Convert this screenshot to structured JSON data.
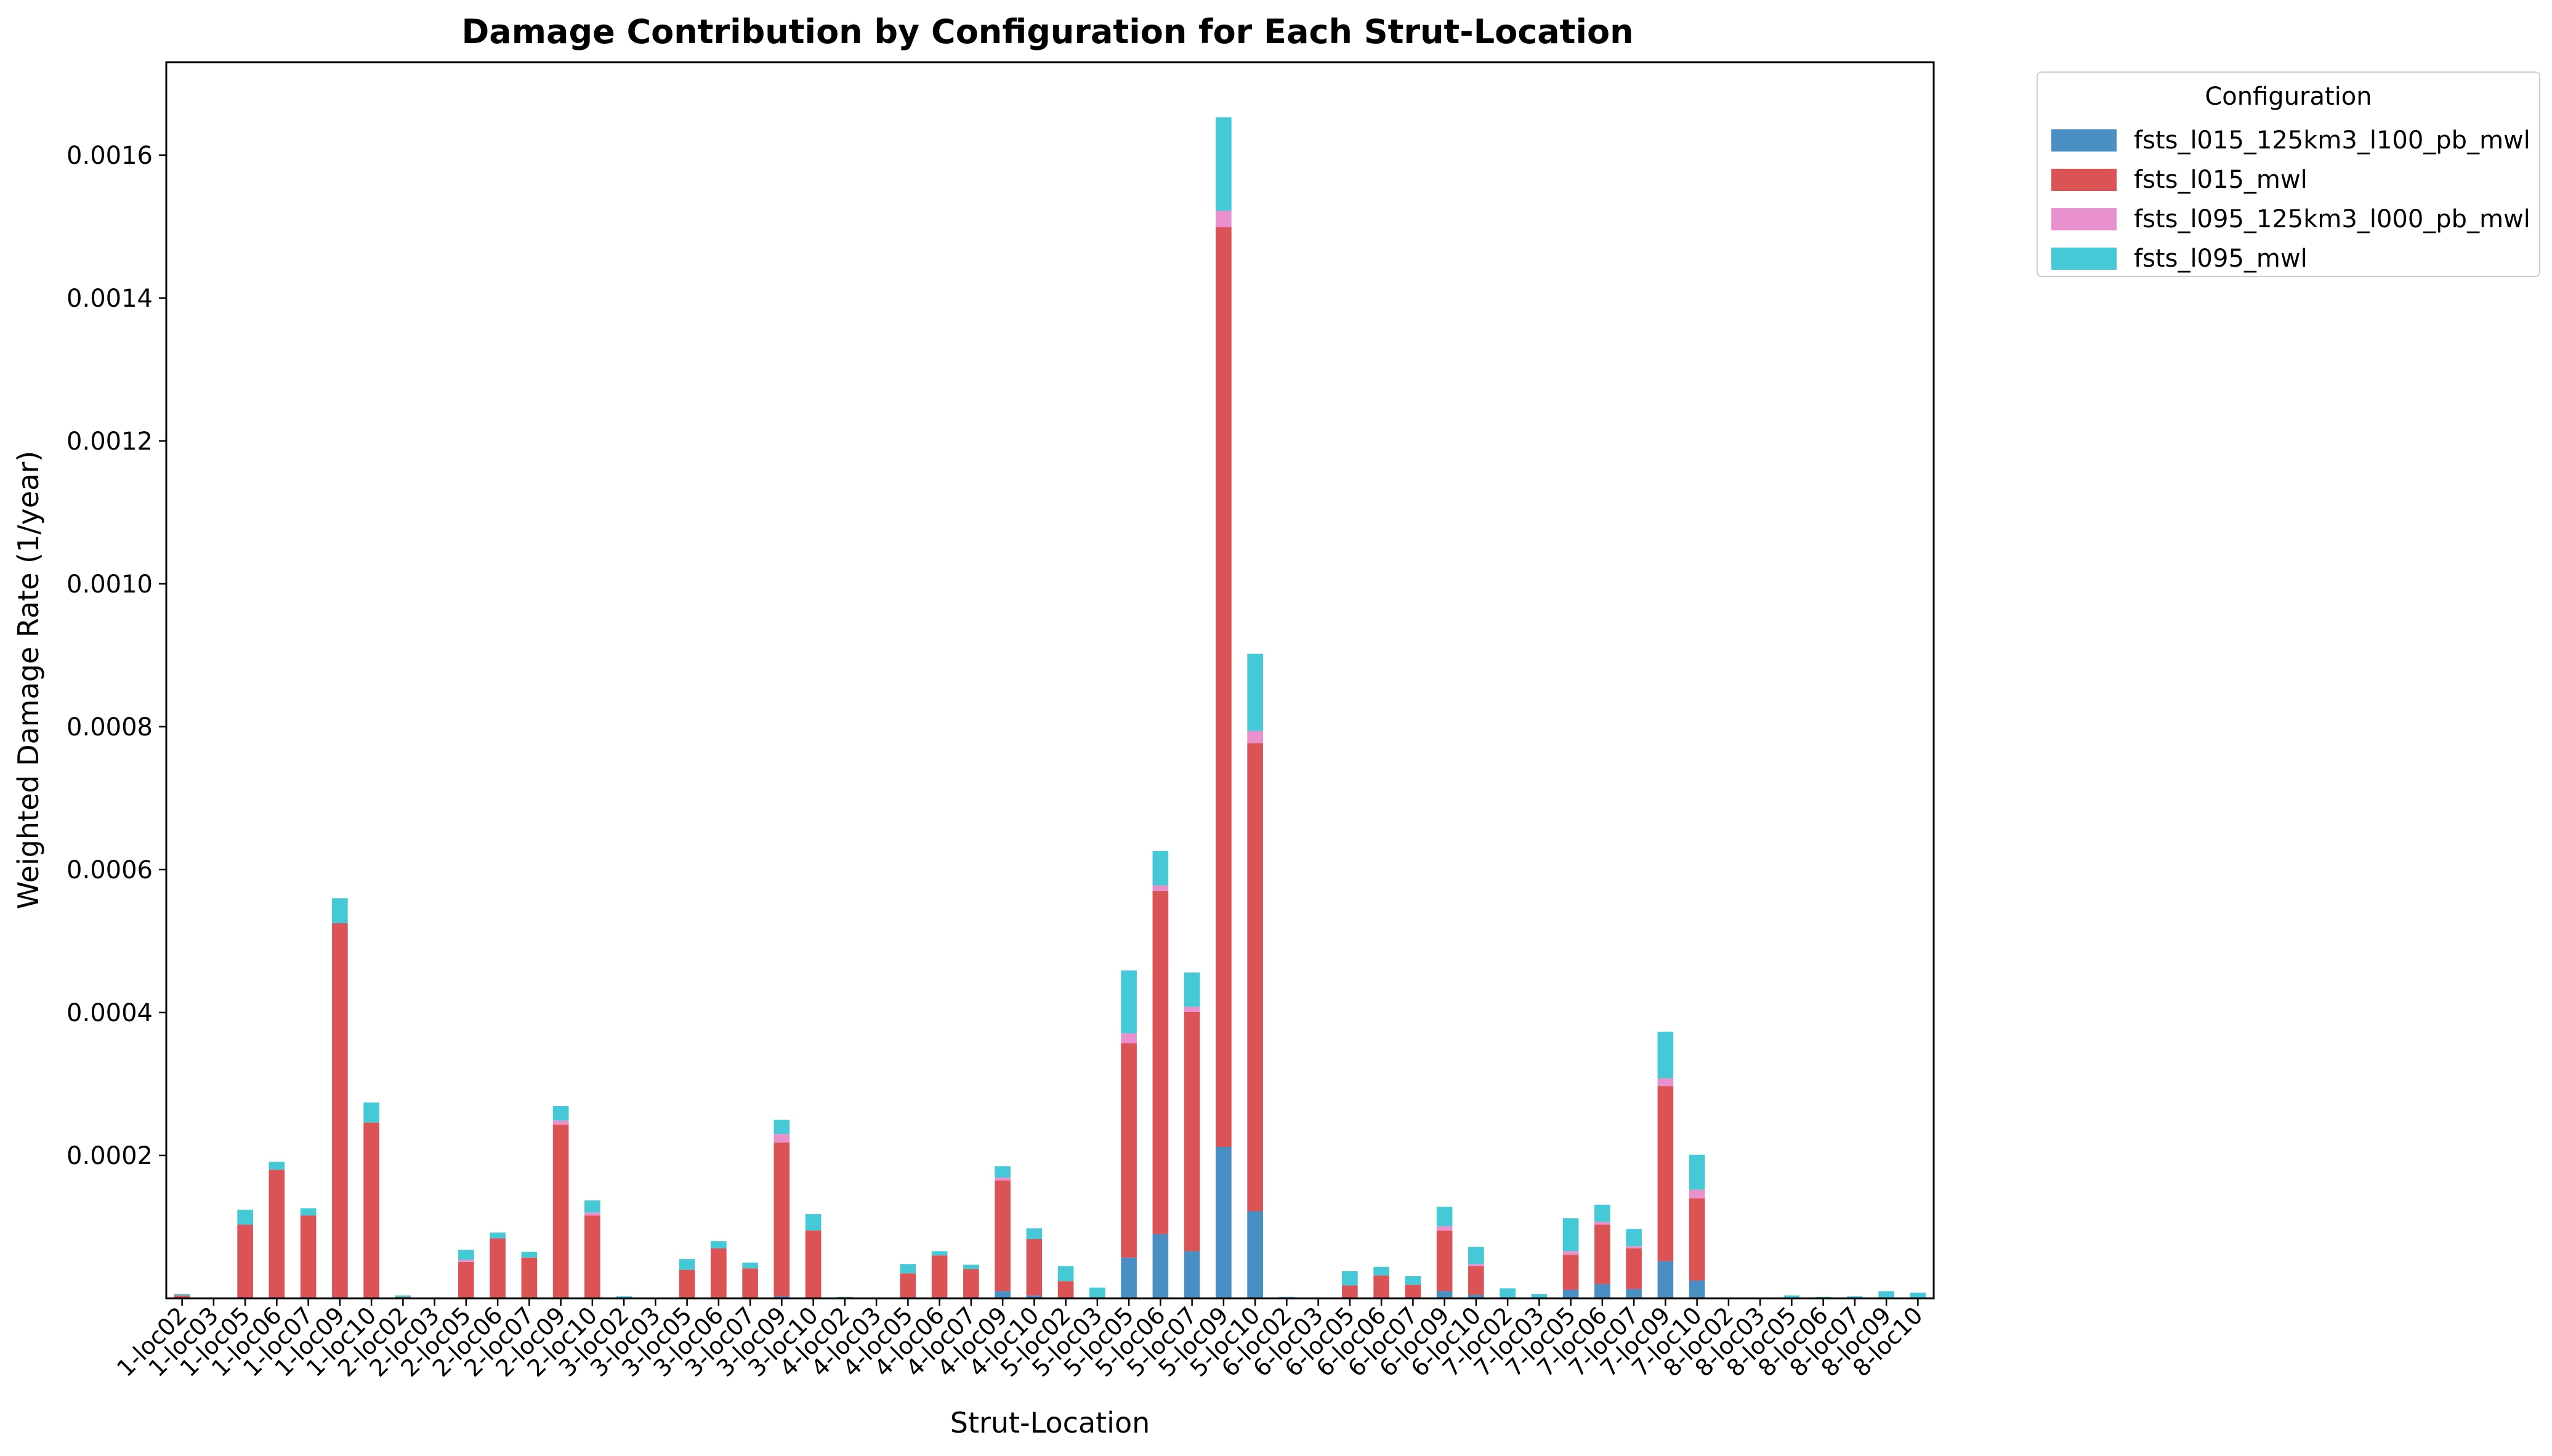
{
  "chart_data": {
    "type": "bar",
    "stacked": true,
    "title": "Damage Contribution by Configuration for Each Strut-Location",
    "xlabel": "Strut-Location",
    "ylabel": "Weighted Damage Rate (1/year)",
    "ylim": [
      0,
      0.00173
    ],
    "yticks": [
      "0.0002",
      "0.0004",
      "0.0006",
      "0.0008",
      "0.0010",
      "0.0012",
      "0.0014",
      "0.0016"
    ],
    "grid": false,
    "legend_title": "Configuration",
    "legend_position": "outside-top-right",
    "categories": [
      "1-loc02",
      "1-loc03",
      "1-loc05",
      "1-loc06",
      "1-loc07",
      "1-loc09",
      "1-loc10",
      "2-loc02",
      "2-loc03",
      "2-loc05",
      "2-loc06",
      "2-loc07",
      "2-loc09",
      "2-loc10",
      "3-loc02",
      "3-loc03",
      "3-loc05",
      "3-loc06",
      "3-loc07",
      "3-loc09",
      "3-loc10",
      "4-loc02",
      "4-loc03",
      "4-loc05",
      "4-loc06",
      "4-loc07",
      "4-loc09",
      "4-loc10",
      "5-loc02",
      "5-loc03",
      "5-loc05",
      "5-loc06",
      "5-loc07",
      "5-loc09",
      "5-loc10",
      "6-loc02",
      "6-loc03",
      "6-loc05",
      "6-loc06",
      "6-loc07",
      "6-loc09",
      "6-loc10",
      "7-loc02",
      "7-loc03",
      "7-loc05",
      "7-loc06",
      "7-loc07",
      "7-loc09",
      "7-loc10",
      "8-loc02",
      "8-loc03",
      "8-loc05",
      "8-loc06",
      "8-loc07",
      "8-loc09",
      "8-loc10"
    ],
    "series": [
      {
        "name": "fsts_l015_125km3_l100_pb_mwl",
        "color": "#4a8fc4",
        "values": [
          0,
          0,
          0,
          0,
          0,
          0,
          0,
          0,
          0,
          0,
          0,
          0,
          0,
          0,
          0,
          0,
          0,
          0,
          0,
          3e-06,
          0,
          0,
          0,
          0,
          0,
          0,
          1e-05,
          4e-06,
          0,
          0,
          5.7e-05,
          9e-05,
          6.6e-05,
          0.000212,
          0.000122,
          0,
          0,
          0,
          0,
          0,
          1e-05,
          5e-06,
          0,
          0,
          1.2e-05,
          2e-05,
          1.3e-05,
          5.2e-05,
          2.5e-05,
          0,
          0,
          0,
          0,
          0,
          0,
          0
        ]
      },
      {
        "name": "fsts_l015_mwl",
        "color": "#dc5356",
        "values": [
          4e-06,
          0,
          0.000103,
          0.00018,
          0.000116,
          0.000525,
          0.000246,
          2e-06,
          0,
          5.1e-05,
          8.4e-05,
          5.7e-05,
          0.000243,
          0.000116,
          1e-06,
          0,
          4e-05,
          7e-05,
          4.2e-05,
          0.000215,
          9.5e-05,
          1e-06,
          0,
          3.5e-05,
          6e-05,
          4.1e-05,
          0.000155,
          7.9e-05,
          2.4e-05,
          0,
          0.0003,
          0.00048,
          0.000335,
          0.001287,
          0.000655,
          0,
          0,
          1.8e-05,
          3.2e-05,
          1.9e-05,
          8.5e-05,
          4e-05,
          0,
          0,
          4.9e-05,
          8.3e-05,
          5.7e-05,
          0.000245,
          0.000115,
          0,
          0,
          0,
          0,
          0,
          0,
          0
        ]
      },
      {
        "name": "fsts_l095_125km3_l000_pb_mwl",
        "color": "#e991cf",
        "values": [
          0,
          0,
          0,
          0,
          0,
          0,
          0,
          0,
          0,
          3e-06,
          0,
          0,
          6e-06,
          4e-06,
          0,
          0,
          0,
          0,
          0,
          1.2e-05,
          0,
          0,
          0,
          0,
          0,
          0,
          4e-06,
          0,
          0,
          0,
          1.4e-05,
          8e-06,
          7e-06,
          2.3e-05,
          1.7e-05,
          0,
          0,
          0,
          0,
          0,
          6e-06,
          3e-06,
          0,
          0,
          5e-06,
          4e-06,
          3e-06,
          1.1e-05,
          1.2e-05,
          0,
          0,
          0,
          0,
          0,
          0,
          0
        ]
      },
      {
        "name": "fsts_l095_mwl",
        "color": "#45c9d6",
        "values": [
          2e-06,
          0,
          2.1e-05,
          1.1e-05,
          1e-05,
          3.5e-05,
          2.8e-05,
          2e-06,
          0,
          1.4e-05,
          8e-06,
          8e-06,
          2e-05,
          1.7e-05,
          2e-06,
          0,
          1.5e-05,
          1e-05,
          8e-06,
          2e-05,
          2.3e-05,
          1e-06,
          0,
          1.3e-05,
          6e-06,
          6e-06,
          1.6e-05,
          1.5e-05,
          2.1e-05,
          1.5e-05,
          8.8e-05,
          4.8e-05,
          4.8e-05,
          0.000131,
          0.000108,
          2e-06,
          0,
          2e-05,
          1.2e-05,
          1.2e-05,
          2.7e-05,
          2.4e-05,
          1.4e-05,
          6e-06,
          4.6e-05,
          2.4e-05,
          2.4e-05,
          6.5e-05,
          4.9e-05,
          0,
          0,
          4e-06,
          2e-06,
          3e-06,
          1e-05,
          8e-06
        ]
      }
    ]
  }
}
